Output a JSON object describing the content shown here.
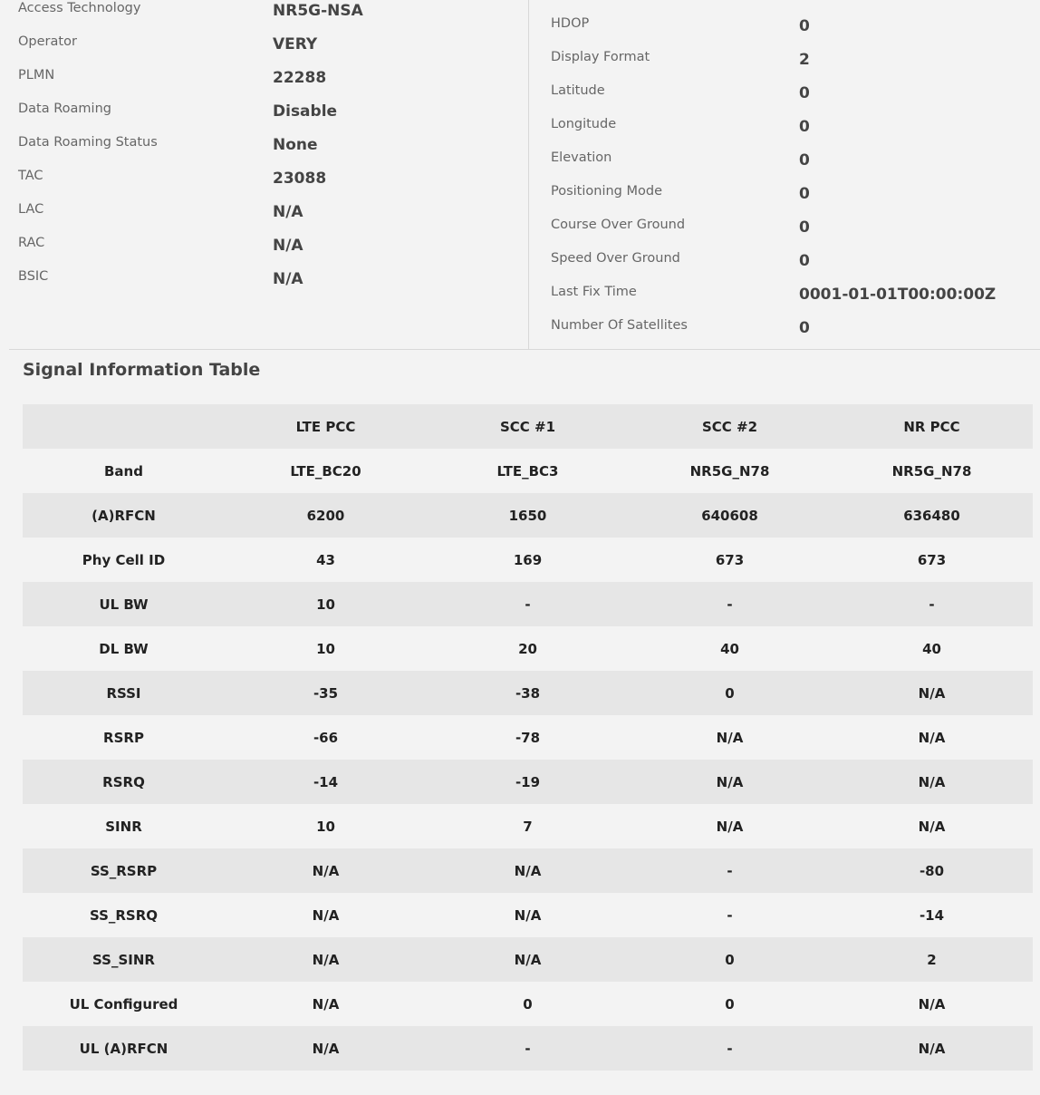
{
  "cellular_info": [
    {
      "label": "Access Technology",
      "value": "NR5G-NSA"
    },
    {
      "label": "Operator",
      "value": "VERY"
    },
    {
      "label": "PLMN",
      "value": "22288"
    },
    {
      "label": "Data Roaming",
      "value": "Disable"
    },
    {
      "label": "Data Roaming Status",
      "value": "None"
    },
    {
      "label": "TAC",
      "value": "23088"
    },
    {
      "label": "LAC",
      "value": "N/A"
    },
    {
      "label": "RAC",
      "value": "N/A"
    },
    {
      "label": "BSIC",
      "value": "N/A"
    }
  ],
  "gps_info": [
    {
      "label": "HDOP",
      "value": "0"
    },
    {
      "label": "Display Format",
      "value": "2"
    },
    {
      "label": "Latitude",
      "value": "0"
    },
    {
      "label": "Longitude",
      "value": "0"
    },
    {
      "label": "Elevation",
      "value": "0"
    },
    {
      "label": "Positioning Mode",
      "value": "0"
    },
    {
      "label": "Course Over Ground",
      "value": "0"
    },
    {
      "label": "Speed Over Ground",
      "value": "0"
    },
    {
      "label": "Last Fix Time",
      "value": "0001-01-01T00:00:00Z"
    },
    {
      "label": "Number Of Satellites",
      "value": "0"
    }
  ],
  "signal_table": {
    "title": "Signal Information Table",
    "columns": [
      "",
      "LTE PCC",
      "SCC #1",
      "SCC #2",
      "NR PCC"
    ],
    "rows": [
      [
        "Band",
        "LTE_BC20",
        "LTE_BC3",
        "NR5G_N78",
        "NR5G_N78"
      ],
      [
        "(A)RFCN",
        "6200",
        "1650",
        "640608",
        "636480"
      ],
      [
        "Phy Cell ID",
        "43",
        "169",
        "673",
        "673"
      ],
      [
        "UL BW",
        "10",
        "-",
        "-",
        "-"
      ],
      [
        "DL BW",
        "10",
        "20",
        "40",
        "40"
      ],
      [
        "RSSI",
        "-35",
        "-38",
        "0",
        "N/A"
      ],
      [
        "RSRP",
        "-66",
        "-78",
        "N/A",
        "N/A"
      ],
      [
        "RSRQ",
        "-14",
        "-19",
        "N/A",
        "N/A"
      ],
      [
        "SINR",
        "10",
        "7",
        "N/A",
        "N/A"
      ],
      [
        "SS_RSRP",
        "N/A",
        "N/A",
        "-",
        "-80"
      ],
      [
        "SS_RSRQ",
        "N/A",
        "N/A",
        "-",
        "-14"
      ],
      [
        "SS_SINR",
        "N/A",
        "N/A",
        "0",
        "2"
      ],
      [
        "UL Configured",
        "N/A",
        "0",
        "0",
        "N/A"
      ],
      [
        "UL (A)RFCN",
        "N/A",
        "-",
        "-",
        "N/A"
      ]
    ]
  }
}
